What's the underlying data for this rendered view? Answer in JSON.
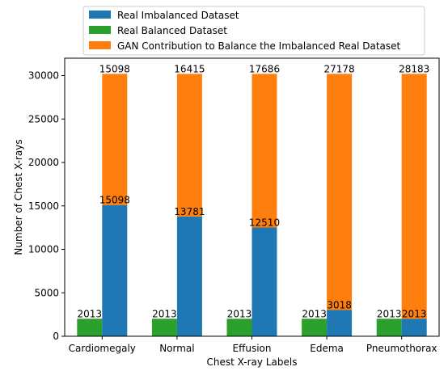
{
  "chart_data": {
    "type": "bar",
    "stacked": true,
    "categories": [
      "Cardiomegaly",
      "Normal",
      "Effusion",
      "Edema",
      "Pneumothorax"
    ],
    "series": [
      {
        "name": "Real Imbalanced Dataset",
        "color": "#1f77b4",
        "values": [
          15098,
          13781,
          12510,
          3018,
          2013
        ],
        "labels": [
          "15098",
          "13781",
          "12510",
          "3018",
          "2013"
        ]
      },
      {
        "name": "Real Balanced Dataset",
        "color": "#2ca02c",
        "values": [
          2013,
          2013,
          2013,
          2013,
          2013
        ],
        "labels": [
          "2013",
          "2013",
          "2013",
          "2013",
          "2013"
        ]
      },
      {
        "name": "GAN Contribution to Balance the Imbalanced Real Dataset",
        "color": "#ff7f0e",
        "values": [
          15098,
          16415,
          17686,
          27178,
          28183
        ],
        "labels": [
          "15098",
          "16415",
          "17686",
          "27178",
          "28183"
        ]
      }
    ],
    "xlabel": "Chest X-ray Labels",
    "ylabel": "Number of Chest X-rays",
    "ylim": [
      0,
      32000
    ],
    "yticks": [
      "0",
      "5000",
      "10000",
      "15000",
      "20000",
      "25000",
      "30000"
    ],
    "ytick_values": [
      0,
      5000,
      10000,
      15000,
      20000,
      25000,
      30000
    ],
    "legend_position": "top"
  }
}
